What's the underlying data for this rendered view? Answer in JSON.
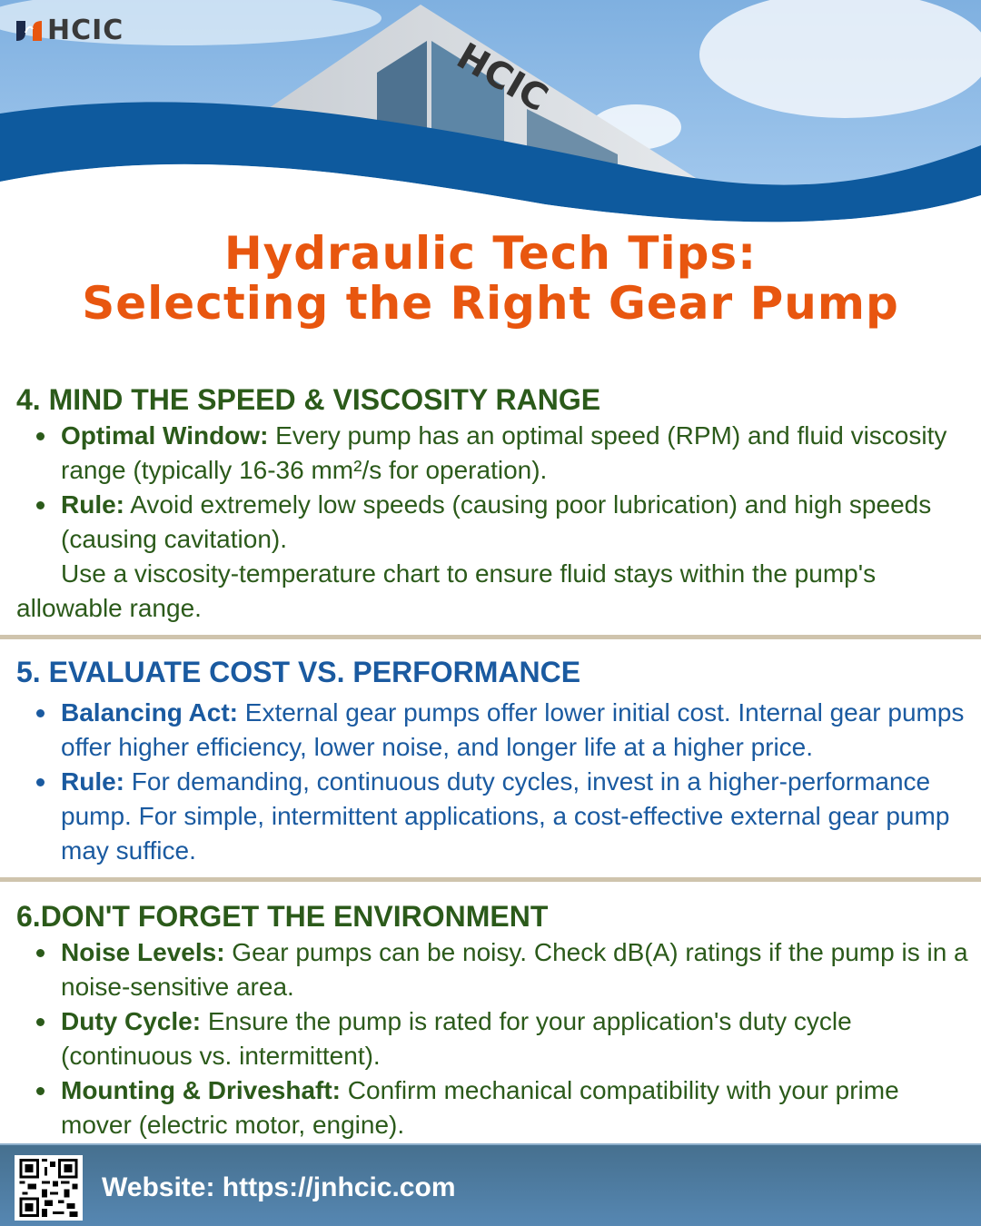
{
  "header": {
    "logo_text": "HCIC",
    "brand_colors": {
      "orange": "#e8560f",
      "navy": "#1c2a4a",
      "wave_blue": "#0e5a9e"
    }
  },
  "title": {
    "line1": "Hydraulic Tech Tips:",
    "line2": "Selecting the Right Gear Pump",
    "color": "#e8560f"
  },
  "sections": [
    {
      "heading": "4. MIND THE SPEED & VISCOSITY RANGE",
      "color": "#2b5a1a",
      "bullets": [
        {
          "label": "Optimal Window:",
          "text": " Every pump has an optimal speed (RPM) and fluid viscosity range (typically 16-36 mm²/s for operation)."
        },
        {
          "label": "Rule:",
          "text": " Avoid extremely low speeds (causing poor lubrication) and high speeds (causing cavitation)."
        }
      ],
      "note": "Use a viscosity-temperature chart to ensure fluid stays within the pump's allowable range."
    },
    {
      "heading": "5. EVALUATE COST VS. PERFORMANCE",
      "color": "#1a5aa0",
      "bullets": [
        {
          "label": "Balancing Act:",
          "text": " External gear pumps offer lower initial cost. Internal gear pumps offer higher efficiency, lower noise, and longer life at a higher price."
        },
        {
          "label": "Rule:",
          "text": " For demanding, continuous duty cycles, invest in a higher-performance pump. For simple, intermittent applications, a cost-effective external gear pump may suffice."
        }
      ]
    },
    {
      "heading": "6.DON'T FORGET THE ENVIRONMENT",
      "color": "#2b5a1a",
      "bullets": [
        {
          "label": "Noise Levels:",
          "text": " Gear pumps can be noisy. Check dB(A) ratings if the pump is in a noise-sensitive area."
        },
        {
          "label": "Duty Cycle:",
          "text": " Ensure the pump is rated for your application's duty cycle (continuous vs. intermittent)."
        },
        {
          "label": "Mounting & Driveshaft:",
          "text": " Confirm mechanical compatibility with your prime mover (electric motor, engine)."
        }
      ]
    }
  ],
  "footer": {
    "website": "Website: https://jnhcic.com",
    "qr_icon": "qr-code"
  }
}
